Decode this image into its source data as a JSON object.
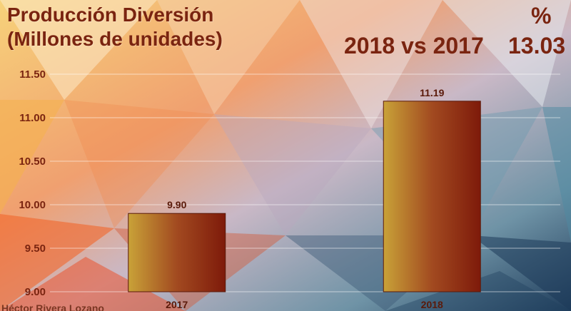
{
  "header": {
    "title_line1": "Producción Diversión",
    "title_line2": "(Millones de unidades)",
    "comparison": "2018 vs 2017",
    "percent_symbol": "%",
    "percent_value": "13.03"
  },
  "footer": {
    "author": "Héctor Rivera Lozano"
  },
  "colors": {
    "title": "#7a2410",
    "bar_light": "#c9a238",
    "bar_dark": "#7e1a0a"
  },
  "chart_data": {
    "type": "bar",
    "categories": [
      "2017",
      "2018"
    ],
    "values": [
      9.9,
      11.19
    ],
    "data_labels": [
      "9.90",
      "11.19"
    ],
    "title": "Producción Diversión (Millones de unidades)",
    "xlabel": "",
    "ylabel": "",
    "ylim": [
      9.0,
      11.5
    ],
    "yticks": [
      9.0,
      9.5,
      10.0,
      10.5,
      11.0,
      11.5
    ],
    "ytick_labels": [
      "9.00",
      "9.50",
      "10.00",
      "10.50",
      "11.00",
      "11.50"
    ],
    "grid": true,
    "legend": "none"
  }
}
